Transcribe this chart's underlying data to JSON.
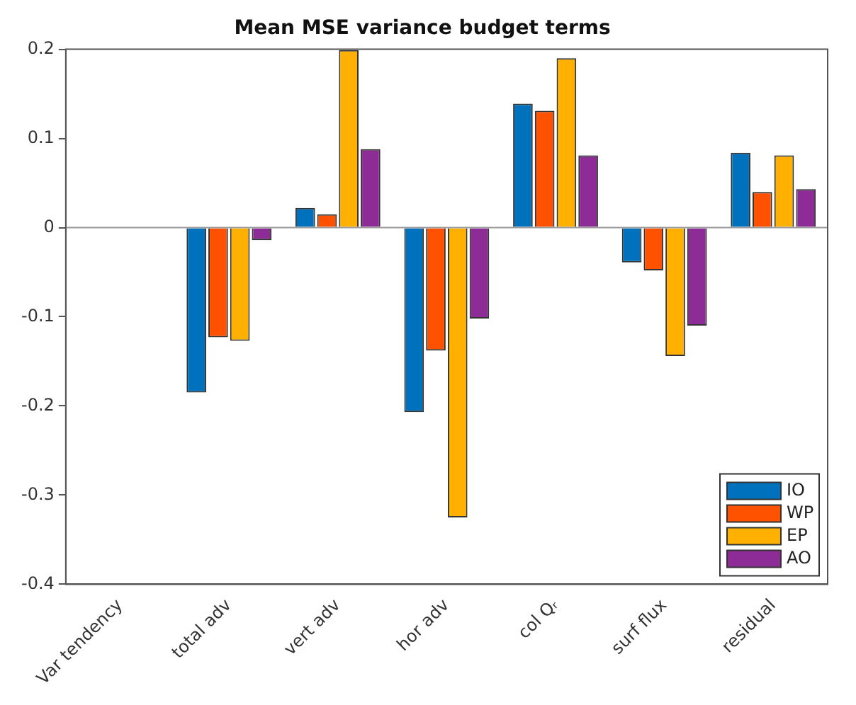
{
  "chart_data": {
    "type": "bar",
    "title": "Mean MSE variance budget terms",
    "categories": [
      "Var tendency",
      "total adv",
      "vert adv",
      "hor adv",
      "col Qᵣ",
      "surf flux",
      "residual"
    ],
    "series": [
      {
        "name": "IO",
        "color": "#0072bd",
        "values": [
          0,
          -0.185,
          0.022,
          -0.207,
          0.139,
          -0.039,
          0.084
        ]
      },
      {
        "name": "WP",
        "color": "#ff5200",
        "values": [
          0,
          -0.123,
          0.015,
          -0.138,
          0.131,
          -0.048,
          0.04
        ]
      },
      {
        "name": "EP",
        "color": "#ffb000",
        "values": [
          0,
          -0.127,
          0.199,
          -0.325,
          0.19,
          -0.144,
          0.081
        ]
      },
      {
        "name": "AO",
        "color": "#8e2c97",
        "values": [
          0,
          -0.014,
          0.088,
          -0.102,
          0.081,
          -0.11,
          0.043
        ]
      }
    ],
    "ylim": [
      -0.4,
      0.2
    ],
    "yticks": [
      -0.4,
      -0.3,
      -0.2,
      -0.1,
      0,
      0.1,
      0.2
    ],
    "legend": "bottom right"
  }
}
